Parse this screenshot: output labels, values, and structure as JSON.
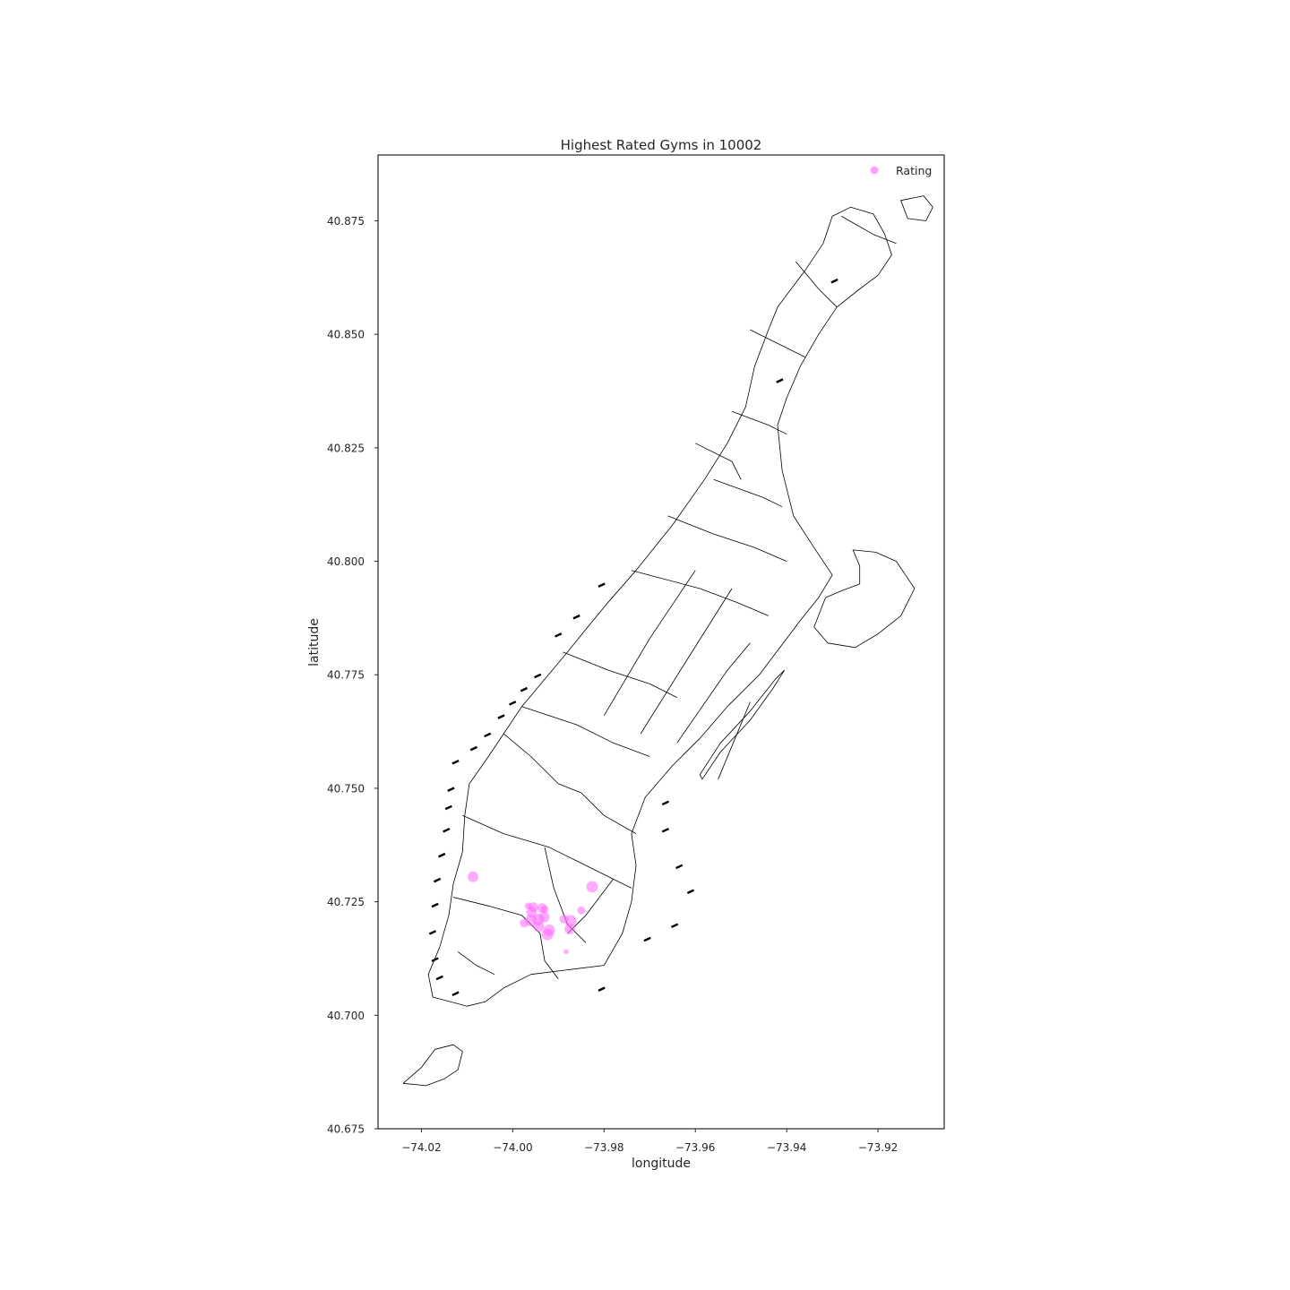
{
  "chart_data": {
    "type": "scatter",
    "title": "Highest Rated Gyms in 10002",
    "xlabel": "longitude",
    "ylabel": "latitude",
    "xlim": [
      -74.0295,
      -73.9055
    ],
    "ylim": [
      40.675,
      40.8895
    ],
    "xticks": [
      -74.02,
      -74.0,
      -73.98,
      -73.96,
      -73.94,
      -73.92
    ],
    "xtick_labels": [
      "−74.02",
      "−74.00",
      "−73.98",
      "−73.96",
      "−73.94",
      "−73.92"
    ],
    "yticks": [
      40.675,
      40.7,
      40.725,
      40.75,
      40.775,
      40.8,
      40.825,
      40.85,
      40.875
    ],
    "ytick_labels": [
      "40.675",
      "40.700",
      "40.725",
      "40.750",
      "40.775",
      "40.800",
      "40.825",
      "40.850",
      "40.875"
    ],
    "grid": false,
    "legend": {
      "position": "top-right",
      "entries": [
        "Rating"
      ]
    },
    "series": [
      {
        "name": "Rating",
        "color": "#ff66ff",
        "points": [
          {
            "x": -74.0087,
            "y": 40.7305,
            "rating": 4.5
          },
          {
            "x": -73.9826,
            "y": 40.7283,
            "rating": 5.0
          },
          {
            "x": -73.9966,
            "y": 40.7241,
            "rating": 2.5
          },
          {
            "x": -73.9955,
            "y": 40.7238,
            "rating": 4.0
          },
          {
            "x": -73.9936,
            "y": 40.7236,
            "rating": 4.0
          },
          {
            "x": -73.993,
            "y": 40.7233,
            "rating": 3.0
          },
          {
            "x": -73.985,
            "y": 40.7231,
            "rating": 3.0
          },
          {
            "x": -73.9959,
            "y": 40.7227,
            "rating": 4.5
          },
          {
            "x": -73.9931,
            "y": 40.7216,
            "rating": 4.5
          },
          {
            "x": -73.9888,
            "y": 40.7212,
            "rating": 3.5
          },
          {
            "x": -73.996,
            "y": 40.7209,
            "rating": 5.0
          },
          {
            "x": -73.9944,
            "y": 40.7211,
            "rating": 5.0
          },
          {
            "x": -73.9975,
            "y": 40.7203,
            "rating": 3.5
          },
          {
            "x": -73.9873,
            "y": 40.7208,
            "rating": 5.0
          },
          {
            "x": -73.9943,
            "y": 40.7195,
            "rating": 4.5
          },
          {
            "x": -73.992,
            "y": 40.7187,
            "rating": 5.0
          },
          {
            "x": -73.9875,
            "y": 40.719,
            "rating": 4.5
          },
          {
            "x": -73.9924,
            "y": 40.7178,
            "rating": 5.0
          },
          {
            "x": -73.9883,
            "y": 40.714,
            "rating": 1.5
          }
        ]
      }
    ]
  },
  "map_geometry": {
    "manhattan_outline": [
      [
        -74.01,
        40.702
      ],
      [
        -74.0175,
        40.704
      ],
      [
        -74.0185,
        40.709
      ],
      [
        -74.016,
        40.715
      ],
      [
        -74.014,
        40.722
      ],
      [
        -74.013,
        40.729
      ],
      [
        -74.011,
        40.736
      ],
      [
        -74.0105,
        40.744
      ],
      [
        -74.0095,
        40.751
      ],
      [
        -74.006,
        40.756
      ],
      [
        -74.002,
        40.762
      ],
      [
        -73.998,
        40.768
      ],
      [
        -73.993,
        40.774
      ],
      [
        -73.988,
        40.78
      ],
      [
        -73.984,
        40.785
      ],
      [
        -73.9795,
        40.7905
      ],
      [
        -73.973,
        40.798
      ],
      [
        -73.965,
        40.808
      ],
      [
        -73.958,
        40.818
      ],
      [
        -73.953,
        40.826
      ],
      [
        -73.949,
        40.834
      ],
      [
        -73.947,
        40.843
      ],
      [
        -73.944,
        40.851
      ],
      [
        -73.942,
        40.856
      ],
      [
        -73.936,
        40.864
      ],
      [
        -73.932,
        40.87
      ],
      [
        -73.93,
        40.876
      ],
      [
        -73.926,
        40.878
      ],
      [
        -73.921,
        40.8765
      ],
      [
        -73.9185,
        40.872
      ],
      [
        -73.917,
        40.8675
      ],
      [
        -73.92,
        40.863
      ],
      [
        -73.924,
        40.86
      ],
      [
        -73.929,
        40.856
      ],
      [
        -73.933,
        40.85
      ],
      [
        -73.937,
        40.843
      ],
      [
        -73.94,
        40.836
      ],
      [
        -73.942,
        40.83
      ],
      [
        -73.941,
        40.82
      ],
      [
        -73.9385,
        40.81
      ],
      [
        -73.934,
        40.803
      ],
      [
        -73.93,
        40.797
      ],
      [
        -73.933,
        40.792
      ],
      [
        -73.937,
        40.787
      ],
      [
        -73.94,
        40.783
      ],
      [
        -73.946,
        40.775
      ],
      [
        -73.953,
        40.768
      ],
      [
        -73.959,
        40.761
      ],
      [
        -73.965,
        40.755
      ],
      [
        -73.971,
        40.748
      ],
      [
        -73.974,
        40.74
      ],
      [
        -73.973,
        40.733
      ],
      [
        -73.974,
        40.725
      ],
      [
        -73.976,
        40.718
      ],
      [
        -73.98,
        40.711
      ],
      [
        -73.988,
        40.71
      ],
      [
        -73.996,
        40.709
      ],
      [
        -74.002,
        40.706
      ],
      [
        -74.006,
        40.703
      ],
      [
        -74.01,
        40.702
      ]
    ],
    "roosevelt_island": [
      [
        -73.9585,
        40.752
      ],
      [
        -73.9545,
        40.758
      ],
      [
        -73.948,
        40.765
      ],
      [
        -73.943,
        40.772
      ],
      [
        -73.9405,
        40.776
      ],
      [
        -73.9425,
        40.774
      ],
      [
        -73.948,
        40.767
      ],
      [
        -73.9545,
        40.76
      ],
      [
        -73.959,
        40.753
      ],
      [
        -73.9585,
        40.752
      ]
    ],
    "randalls_island": [
      [
        -73.9315,
        40.792
      ],
      [
        -73.928,
        40.7935
      ],
      [
        -73.924,
        40.795
      ],
      [
        -73.924,
        40.799
      ],
      [
        -73.9255,
        40.8025
      ],
      [
        -73.9205,
        40.802
      ],
      [
        -73.916,
        40.8
      ],
      [
        -73.912,
        40.794
      ],
      [
        -73.915,
        40.788
      ],
      [
        -73.92,
        40.784
      ],
      [
        -73.925,
        40.781
      ],
      [
        -73.931,
        40.782
      ],
      [
        -73.934,
        40.7855
      ],
      [
        -73.9315,
        40.792
      ]
    ],
    "governors_island": [
      [
        -74.024,
        40.685
      ],
      [
        -74.02,
        40.6885
      ],
      [
        -74.017,
        40.6925
      ],
      [
        -74.013,
        40.6935
      ],
      [
        -74.011,
        40.692
      ],
      [
        -74.012,
        40.688
      ],
      [
        -74.015,
        40.686
      ],
      [
        -74.019,
        40.6845
      ],
      [
        -74.024,
        40.685
      ]
    ],
    "marble_hill": [
      [
        -73.915,
        40.8795
      ],
      [
        -73.91,
        40.8805
      ],
      [
        -73.908,
        40.878
      ],
      [
        -73.9095,
        40.875
      ],
      [
        -73.9135,
        40.8755
      ],
      [
        -73.915,
        40.8795
      ]
    ],
    "zip_lines": [
      [
        [
          -74.012,
          40.714
        ],
        [
          -74.008,
          40.711
        ],
        [
          -74.004,
          40.709
        ]
      ],
      [
        [
          -74.013,
          40.726
        ],
        [
          -74.005,
          40.724
        ],
        [
          -73.998,
          40.722
        ],
        [
          -73.994,
          40.718
        ],
        [
          -73.993,
          40.712
        ],
        [
          -73.99,
          40.708
        ]
      ],
      [
        [
          -74.011,
          40.744
        ],
        [
          -74.002,
          40.74
        ],
        [
          -73.992,
          40.737
        ],
        [
          -73.986,
          40.734
        ],
        [
          -73.974,
          40.728
        ]
      ],
      [
        [
          -73.993,
          40.737
        ],
        [
          -73.991,
          40.728
        ],
        [
          -73.988,
          40.72
        ],
        [
          -73.984,
          40.716
        ]
      ],
      [
        [
          -73.978,
          40.73
        ],
        [
          -73.984,
          40.722
        ],
        [
          -73.988,
          40.718
        ]
      ],
      [
        [
          -74.002,
          40.762
        ],
        [
          -73.996,
          40.757
        ],
        [
          -73.99,
          40.751
        ],
        [
          -73.985,
          40.749
        ],
        [
          -73.98,
          40.744
        ],
        [
          -73.973,
          40.74
        ]
      ],
      [
        [
          -73.998,
          40.768
        ],
        [
          -73.986,
          40.764
        ],
        [
          -73.978,
          40.76
        ],
        [
          -73.97,
          40.757
        ]
      ],
      [
        [
          -73.989,
          40.78
        ],
        [
          -73.979,
          40.776
        ],
        [
          -73.97,
          40.773
        ],
        [
          -73.964,
          40.77
        ]
      ],
      [
        [
          -73.98,
          40.766
        ],
        [
          -73.97,
          40.783
        ],
        [
          -73.96,
          40.798
        ]
      ],
      [
        [
          -73.972,
          40.762
        ],
        [
          -73.962,
          40.778
        ],
        [
          -73.952,
          40.794
        ]
      ],
      [
        [
          -73.964,
          40.76
        ],
        [
          -73.953,
          40.776
        ],
        [
          -73.948,
          40.782
        ]
      ],
      [
        [
          -73.955,
          40.752
        ],
        [
          -73.948,
          40.769
        ]
      ],
      [
        [
          -73.974,
          40.798
        ],
        [
          -73.959,
          40.794
        ],
        [
          -73.951,
          40.791
        ],
        [
          -73.944,
          40.788
        ]
      ],
      [
        [
          -73.966,
          40.81
        ],
        [
          -73.956,
          40.806
        ],
        [
          -73.947,
          40.803
        ],
        [
          -73.94,
          40.8
        ]
      ],
      [
        [
          -73.956,
          40.818
        ],
        [
          -73.945,
          40.814
        ],
        [
          -73.941,
          40.812
        ]
      ],
      [
        [
          -73.96,
          40.826
        ],
        [
          -73.952,
          40.822
        ],
        [
          -73.95,
          40.818
        ]
      ],
      [
        [
          -73.952,
          40.833
        ],
        [
          -73.944,
          40.83
        ],
        [
          -73.94,
          40.828
        ]
      ],
      [
        [
          -73.948,
          40.851
        ],
        [
          -73.94,
          40.847
        ],
        [
          -73.936,
          40.845
        ]
      ],
      [
        [
          -73.938,
          40.866
        ],
        [
          -73.933,
          40.86
        ],
        [
          -73.929,
          40.856
        ]
      ],
      [
        [
          -73.928,
          40.876
        ],
        [
          -73.921,
          40.872
        ],
        [
          -73.916,
          40.87
        ]
      ]
    ],
    "piers": [
      [
        -74.012,
        40.705
      ],
      [
        -74.0155,
        40.7085
      ],
      [
        -74.0165,
        40.7125
      ],
      [
        -74.017,
        40.7185
      ],
      [
        -74.0165,
        40.7245
      ],
      [
        -74.016,
        40.73
      ],
      [
        -74.015,
        40.7355
      ],
      [
        -74.014,
        40.741
      ],
      [
        -74.0135,
        40.746
      ],
      [
        -74.013,
        40.75
      ],
      [
        -74.012,
        40.756
      ],
      [
        -74.008,
        40.759
      ],
      [
        -74.005,
        40.762
      ],
      [
        -74.002,
        40.766
      ],
      [
        -73.9995,
        40.769
      ],
      [
        -73.997,
        40.772
      ],
      [
        -73.994,
        40.775
      ],
      [
        -73.9895,
        40.784
      ],
      [
        -73.9855,
        40.788
      ],
      [
        -73.98,
        40.795
      ],
      [
        -73.941,
        40.84
      ],
      [
        -73.929,
        40.862
      ],
      [
        -73.966,
        40.747
      ],
      [
        -73.966,
        40.741
      ],
      [
        -73.963,
        40.733
      ],
      [
        -73.9605,
        40.7275
      ],
      [
        -73.964,
        40.72
      ],
      [
        -73.97,
        40.717
      ],
      [
        -73.98,
        40.706
      ]
    ]
  }
}
